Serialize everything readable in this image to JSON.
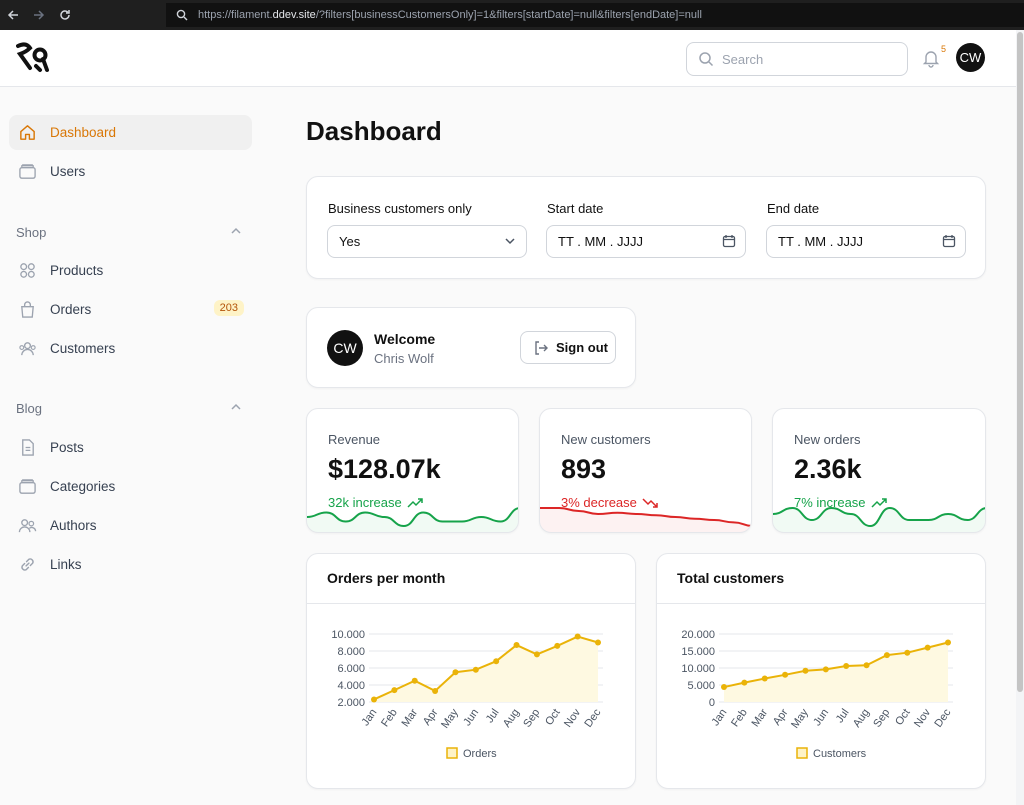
{
  "browser": {
    "url_prefix": "https://filament.",
    "url_domain": "ddev.site",
    "url_rest": "/?filters[businessCustomersOnly]=1&filters[startDate]=null&filters[endDate]=null"
  },
  "topbar": {
    "search_placeholder": "Search",
    "notification_count": "5",
    "avatar_initials": "CW"
  },
  "sidebar": {
    "items_top": [
      {
        "label": "Dashboard",
        "icon": "home-icon",
        "active": true
      },
      {
        "label": "Users",
        "icon": "folder-icon"
      }
    ],
    "groups": [
      {
        "label": "Shop",
        "items": [
          {
            "label": "Products",
            "icon": "grid-icon"
          },
          {
            "label": "Orders",
            "icon": "bag-icon",
            "badge": "203"
          },
          {
            "label": "Customers",
            "icon": "users-icon"
          }
        ]
      },
      {
        "label": "Blog",
        "items": [
          {
            "label": "Posts",
            "icon": "document-icon"
          },
          {
            "label": "Categories",
            "icon": "folder-icon"
          },
          {
            "label": "Authors",
            "icon": "users-icon"
          },
          {
            "label": "Links",
            "icon": "link-icon"
          }
        ]
      }
    ]
  },
  "page": {
    "title": "Dashboard"
  },
  "filters": {
    "business": {
      "label": "Business customers only",
      "value": "Yes"
    },
    "start": {
      "label": "Start date",
      "placeholder": "TT . MM . JJJJ"
    },
    "end": {
      "label": "End date",
      "placeholder": "TT . MM . JJJJ"
    }
  },
  "welcome": {
    "avatar_initials": "CW",
    "title": "Welcome",
    "name": "Chris Wolf",
    "signout_label": "Sign out"
  },
  "stats": [
    {
      "label": "Revenue",
      "value": "$128.07k",
      "trend": "32k increase",
      "direction": "up",
      "color": "#16a34a",
      "spark": [
        4,
        5,
        3,
        5,
        4,
        2,
        5,
        3,
        3,
        4,
        3,
        6
      ]
    },
    {
      "label": "New customers",
      "value": "893",
      "trend": "3% decrease",
      "direction": "down",
      "color": "#dc2626",
      "spark": [
        6,
        6,
        5.5,
        5,
        5.2,
        5,
        4.8,
        4.5,
        4.2,
        4,
        3.6,
        3
      ]
    },
    {
      "label": "New orders",
      "value": "2.36k",
      "trend": "7% increase",
      "direction": "up",
      "color": "#16a34a",
      "spark": [
        4,
        5,
        3,
        5,
        4,
        2,
        5,
        3,
        3,
        4,
        3,
        5
      ]
    }
  ],
  "chart_data": [
    {
      "type": "area",
      "title": "Orders per month",
      "categories": [
        "Jan",
        "Feb",
        "Mar",
        "Apr",
        "May",
        "Jun",
        "Jul",
        "Aug",
        "Sep",
        "Oct",
        "Nov",
        "Dec"
      ],
      "series": [
        {
          "name": "Orders",
          "values": [
            2300,
            3400,
            4500,
            3300,
            5500,
            5800,
            6800,
            8700,
            7600,
            8600,
            9700,
            9000
          ]
        }
      ],
      "yticks": [
        "10.000",
        "8.000",
        "6.000",
        "4.000",
        "2.000"
      ],
      "ylim": [
        2000,
        10000
      ],
      "color": "#eab308",
      "legend": "bottom"
    },
    {
      "type": "area",
      "title": "Total customers",
      "categories": [
        "Jan",
        "Feb",
        "Mar",
        "Apr",
        "May",
        "Jun",
        "Jul",
        "Aug",
        "Sep",
        "Oct",
        "Nov",
        "Dec"
      ],
      "series": [
        {
          "name": "Customers",
          "values": [
            4400,
            5700,
            6900,
            8000,
            9200,
            9600,
            10600,
            10800,
            13800,
            14500,
            16000,
            17500
          ]
        }
      ],
      "yticks": [
        "20.000",
        "15.000",
        "10.000",
        "5.000",
        "0"
      ],
      "ylim": [
        0,
        20000
      ],
      "color": "#eab308",
      "legend": "bottom"
    }
  ]
}
